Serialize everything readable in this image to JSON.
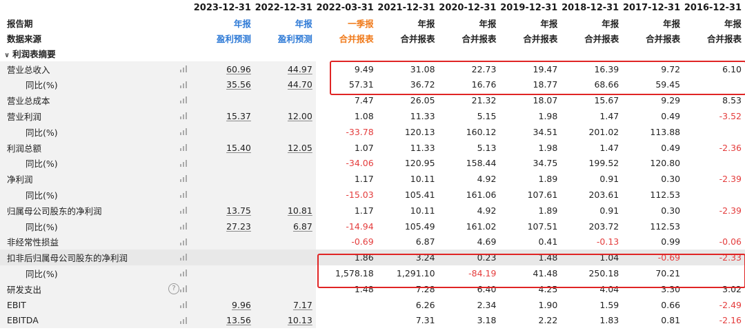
{
  "header": {
    "period_label": "报告期",
    "source_label": "数据来源",
    "columns": [
      {
        "date": "2023-12-31",
        "type": "年报",
        "source": "盈利预测",
        "style": "blue"
      },
      {
        "date": "2022-12-31",
        "type": "年报",
        "source": "盈利预测",
        "style": "blue"
      },
      {
        "date": "2022-03-31",
        "type": "一季报",
        "source": "合并报表",
        "style": "orange"
      },
      {
        "date": "2021-12-31",
        "type": "年报",
        "source": "合并报表",
        "style": "normal"
      },
      {
        "date": "2020-12-31",
        "type": "年报",
        "source": "合并报表",
        "style": "normal"
      },
      {
        "date": "2019-12-31",
        "type": "年报",
        "source": "合并报表",
        "style": "normal"
      },
      {
        "date": "2018-12-31",
        "type": "年报",
        "source": "合并报表",
        "style": "normal"
      },
      {
        "date": "2017-12-31",
        "type": "年报",
        "source": "合并报表",
        "style": "normal"
      },
      {
        "date": "2016-12-31",
        "type": "年报",
        "source": "合并报表",
        "style": "normal"
      }
    ]
  },
  "section_title": "利润表摘要",
  "rows": [
    {
      "label": "营业总收入",
      "sub": false,
      "values": [
        "60.96",
        "44.97",
        "9.49",
        "31.08",
        "22.73",
        "19.47",
        "16.39",
        "9.72",
        "6.10"
      ]
    },
    {
      "label": "同比(%)",
      "sub": true,
      "values": [
        "35.56",
        "44.70",
        "57.31",
        "36.72",
        "16.76",
        "18.77",
        "68.66",
        "59.45",
        ""
      ]
    },
    {
      "label": "营业总成本",
      "sub": false,
      "values": [
        "",
        "",
        "7.47",
        "26.05",
        "21.32",
        "18.07",
        "15.67",
        "9.29",
        "8.53"
      ]
    },
    {
      "label": "营业利润",
      "sub": false,
      "values": [
        "15.37",
        "12.00",
        "1.08",
        "11.33",
        "5.15",
        "1.98",
        "1.47",
        "0.49",
        "-3.52"
      ]
    },
    {
      "label": "同比(%)",
      "sub": true,
      "values": [
        "",
        "",
        "-33.78",
        "120.13",
        "160.12",
        "34.51",
        "201.02",
        "113.88",
        ""
      ]
    },
    {
      "label": "利润总额",
      "sub": false,
      "values": [
        "15.40",
        "12.05",
        "1.07",
        "11.33",
        "5.13",
        "1.98",
        "1.47",
        "0.49",
        "-2.36"
      ]
    },
    {
      "label": "同比(%)",
      "sub": true,
      "values": [
        "",
        "",
        "-34.06",
        "120.95",
        "158.44",
        "34.75",
        "199.52",
        "120.80",
        ""
      ]
    },
    {
      "label": "净利润",
      "sub": false,
      "values": [
        "",
        "",
        "1.17",
        "10.11",
        "4.92",
        "1.89",
        "0.91",
        "0.30",
        "-2.39"
      ]
    },
    {
      "label": "同比(%)",
      "sub": true,
      "values": [
        "",
        "",
        "-15.03",
        "105.41",
        "161.06",
        "107.61",
        "203.61",
        "112.53",
        ""
      ]
    },
    {
      "label": "归属母公司股东的净利润",
      "sub": false,
      "values": [
        "13.75",
        "10.81",
        "1.17",
        "10.11",
        "4.92",
        "1.89",
        "0.91",
        "0.30",
        "-2.39"
      ]
    },
    {
      "label": "同比(%)",
      "sub": true,
      "values": [
        "27.23",
        "6.87",
        "-14.94",
        "105.49",
        "161.02",
        "107.51",
        "203.72",
        "112.53",
        ""
      ]
    },
    {
      "label": "非经常性损益",
      "sub": false,
      "values": [
        "",
        "",
        "-0.69",
        "6.87",
        "4.69",
        "0.41",
        "-0.13",
        "0.99",
        "-0.06"
      ]
    },
    {
      "label": "扣非后归属母公司股东的净利润",
      "sub": false,
      "highlight": true,
      "values": [
        "",
        "",
        "1.86",
        "3.24",
        "0.23",
        "1.48",
        "1.04",
        "-0.69",
        "-2.33"
      ]
    },
    {
      "label": "同比(%)",
      "sub": true,
      "values": [
        "",
        "",
        "1,578.18",
        "1,291.10",
        "-84.19",
        "41.48",
        "250.18",
        "70.21",
        ""
      ]
    },
    {
      "label": "研发支出",
      "sub": false,
      "help": true,
      "values": [
        "",
        "",
        "1.48",
        "7.28",
        "6.40",
        "4.25",
        "4.04",
        "3.30",
        "3.02"
      ]
    },
    {
      "label": "EBIT",
      "sub": false,
      "values": [
        "9.96",
        "7.17",
        "",
        "6.26",
        "2.34",
        "1.90",
        "1.59",
        "0.66",
        "-2.49"
      ]
    },
    {
      "label": "EBITDA",
      "sub": false,
      "values": [
        "13.56",
        "10.13",
        "",
        "7.31",
        "3.18",
        "2.22",
        "1.83",
        "0.81",
        "-2.16"
      ]
    }
  ],
  "colors": {
    "accent_blue": "#2e7ad6",
    "accent_orange": "#f07a1a",
    "negative_red": "#e43c3c",
    "box_red": "#e02424"
  }
}
